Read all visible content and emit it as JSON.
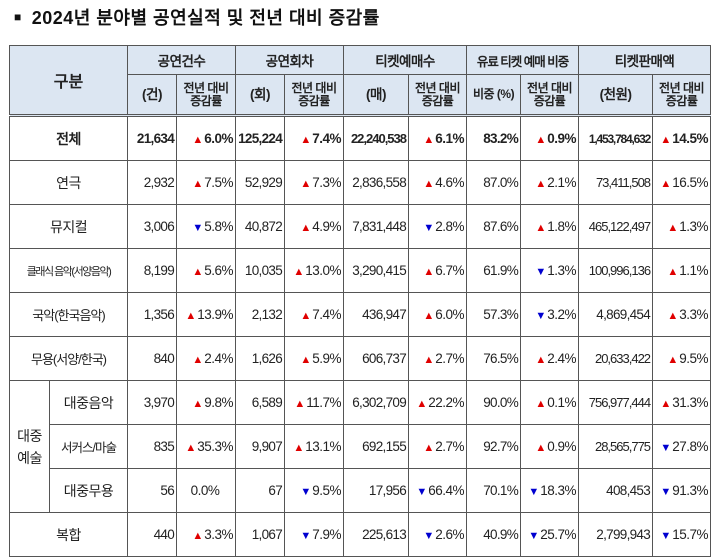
{
  "title": "2024년 분야별 공연실적 및 전년 대비 증감률",
  "header": {
    "category": "구분",
    "groups": [
      "공연건수",
      "공연회차",
      "티켓예매수",
      "유료 티켓 예매 비중",
      "티켓판매액"
    ],
    "sub": [
      "(건)",
      "전년 대비 증감률",
      "(회)",
      "전년 대비 증감률",
      "(매)",
      "전년 대비 증감률",
      "비중 (%)",
      "전년 대비 증감률",
      "(천원)",
      "전년 대비 증감률"
    ]
  },
  "colors": {
    "up": "#e00000",
    "down": "#0000d0",
    "header_bg": "#dce6f2"
  },
  "group_label": "대중 예술",
  "rows": [
    {
      "label": "전체",
      "total": true,
      "cells": [
        "21,634",
        [
          "up",
          "6.0%"
        ],
        "125,224",
        [
          "up",
          "7.4%"
        ],
        "22,240,538",
        [
          "up",
          "6.1%"
        ],
        "83.2%",
        [
          "up",
          "0.9%"
        ],
        "1,453,784,632",
        [
          "up",
          "14.5%"
        ]
      ]
    },
    {
      "label": "연극",
      "cells": [
        "2,932",
        [
          "up",
          "7.5%"
        ],
        "52,929",
        [
          "up",
          "7.3%"
        ],
        "2,836,558",
        [
          "up",
          "4.6%"
        ],
        "87.0%",
        [
          "up",
          "2.1%"
        ],
        "73,411,508",
        [
          "up",
          "16.5%"
        ]
      ]
    },
    {
      "label": "뮤지컬",
      "cells": [
        "3,006",
        [
          "down",
          "5.8%"
        ],
        "40,872",
        [
          "up",
          "4.9%"
        ],
        "7,831,448",
        [
          "down",
          "2.8%"
        ],
        "87.6%",
        [
          "up",
          "1.8%"
        ],
        "465,122,497",
        [
          "up",
          "1.3%"
        ]
      ]
    },
    {
      "label": "클래식 음악(서양음악)",
      "cells": [
        "8,199",
        [
          "up",
          "5.6%"
        ],
        "10,035",
        [
          "up",
          "13.0%"
        ],
        "3,290,415",
        [
          "up",
          "6.7%"
        ],
        "61.9%",
        [
          "down",
          "1.3%"
        ],
        "100,996,136",
        [
          "up",
          "1.1%"
        ]
      ]
    },
    {
      "label": "국악(한국음악)",
      "cells": [
        "1,356",
        [
          "up",
          "13.9%"
        ],
        "2,132",
        [
          "up",
          "7.4%"
        ],
        "436,947",
        [
          "up",
          "6.0%"
        ],
        "57.3%",
        [
          "down",
          "3.2%"
        ],
        "4,869,454",
        [
          "up",
          "3.3%"
        ]
      ]
    },
    {
      "label": "무용(서양/한국)",
      "cells": [
        "840",
        [
          "up",
          "2.4%"
        ],
        "1,626",
        [
          "up",
          "5.9%"
        ],
        "606,737",
        [
          "up",
          "2.7%"
        ],
        "76.5%",
        [
          "up",
          "2.4%"
        ],
        "20,633,422",
        [
          "up",
          "9.5%"
        ]
      ]
    },
    {
      "label": "대중음악",
      "group": true,
      "cells": [
        "3,970",
        [
          "up",
          "9.8%"
        ],
        "6,589",
        [
          "up",
          "11.7%"
        ],
        "6,302,709",
        [
          "up",
          "22.2%"
        ],
        "90.0%",
        [
          "up",
          "0.1%"
        ],
        "756,977,444",
        [
          "up",
          "31.3%"
        ]
      ]
    },
    {
      "label": "서커스/마술",
      "group": true,
      "cells": [
        "835",
        [
          "up",
          "35.3%"
        ],
        "9,907",
        [
          "up",
          "13.1%"
        ],
        "692,155",
        [
          "up",
          "2.7%"
        ],
        "92.7%",
        [
          "up",
          "0.9%"
        ],
        "28,565,775",
        [
          "down",
          "27.8%"
        ]
      ]
    },
    {
      "label": "대중무용",
      "group": true,
      "cells": [
        "56",
        [
          "none",
          "0.0%"
        ],
        "67",
        [
          "down",
          "9.5%"
        ],
        "17,956",
        [
          "down",
          "66.4%"
        ],
        "70.1%",
        [
          "down",
          "18.3%"
        ],
        "408,453",
        [
          "down",
          "91.3%"
        ]
      ]
    },
    {
      "label": "복합",
      "cells": [
        "440",
        [
          "up",
          "3.3%"
        ],
        "1,067",
        [
          "down",
          "7.9%"
        ],
        "225,613",
        [
          "down",
          "2.6%"
        ],
        "40.9%",
        [
          "down",
          "25.7%"
        ],
        "2,799,943",
        [
          "down",
          "15.7%"
        ]
      ]
    }
  ]
}
